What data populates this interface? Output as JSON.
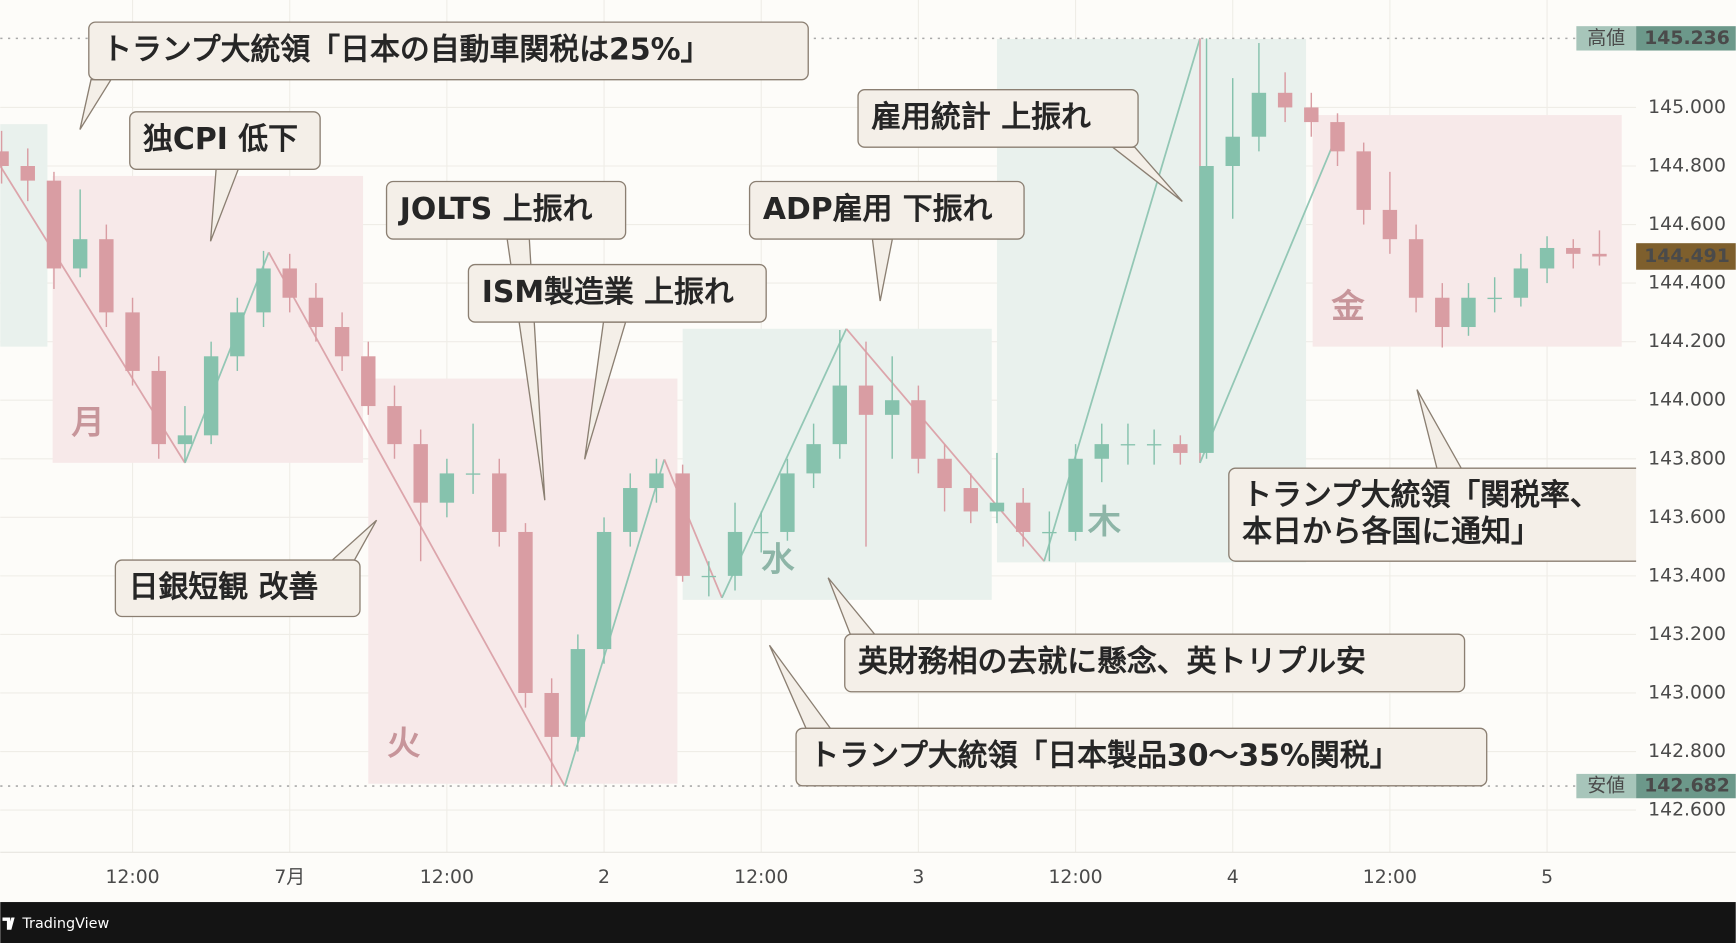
{
  "chart_data": {
    "type": "candlestick",
    "x": [
      -22,
      -20,
      -18,
      -16,
      -14,
      -12,
      -10,
      -8,
      -6,
      -4,
      -2,
      0,
      2,
      4,
      6,
      8,
      10,
      12,
      14,
      16,
      18,
      20,
      22,
      24,
      26,
      28,
      30,
      32,
      34,
      36,
      38,
      40,
      42,
      44,
      46,
      48,
      50,
      52,
      54,
      56,
      58,
      60,
      62,
      64,
      66,
      68,
      70,
      72,
      74,
      76,
      78,
      80,
      82,
      84,
      86,
      88,
      90,
      92,
      94,
      96,
      98,
      100
    ],
    "open": [
      144.85,
      144.8,
      144.75,
      144.45,
      144.55,
      144.3,
      144.1,
      143.85,
      143.88,
      144.15,
      144.3,
      144.45,
      144.35,
      144.25,
      144.15,
      143.98,
      143.85,
      143.65,
      143.75,
      143.75,
      143.55,
      143.0,
      142.85,
      143.15,
      143.55,
      143.7,
      143.75,
      143.4,
      143.4,
      143.55,
      143.55,
      143.75,
      143.85,
      144.05,
      143.95,
      144.0,
      143.8,
      143.7,
      143.62,
      143.65,
      143.55,
      143.55,
      143.8,
      143.85,
      143.85,
      143.85,
      143.82,
      144.8,
      144.9,
      145.05,
      145.0,
      144.95,
      144.85,
      144.65,
      144.55,
      144.35,
      144.25,
      144.35,
      144.35,
      144.45,
      144.52,
      144.5
    ],
    "high": [
      144.92,
      144.86,
      144.78,
      144.72,
      144.6,
      144.35,
      144.15,
      143.98,
      144.2,
      144.35,
      144.51,
      144.5,
      144.4,
      144.3,
      144.2,
      144.05,
      143.9,
      143.8,
      143.92,
      143.8,
      143.58,
      143.05,
      143.2,
      143.6,
      143.75,
      143.8,
      143.78,
      143.45,
      143.65,
      143.62,
      143.8,
      143.92,
      144.24,
      144.2,
      144.15,
      144.05,
      143.85,
      143.75,
      143.82,
      143.7,
      143.62,
      143.85,
      143.92,
      143.92,
      143.9,
      143.88,
      145.236,
      145.1,
      145.22,
      145.12,
      145.05,
      144.98,
      144.88,
      144.78,
      144.6,
      144.4,
      144.4,
      144.42,
      144.5,
      144.56,
      144.55,
      144.58
    ],
    "low": [
      144.74,
      144.68,
      144.38,
      144.42,
      144.25,
      144.05,
      143.8,
      143.79,
      143.85,
      144.1,
      144.25,
      144.3,
      144.2,
      144.1,
      143.95,
      143.8,
      143.45,
      143.6,
      143.68,
      143.5,
      142.95,
      142.682,
      142.8,
      143.1,
      143.5,
      143.65,
      143.38,
      143.33,
      143.35,
      143.48,
      143.52,
      143.7,
      143.8,
      143.5,
      143.8,
      143.75,
      143.62,
      143.58,
      143.58,
      143.5,
      143.45,
      143.52,
      143.72,
      143.78,
      143.78,
      143.78,
      143.8,
      144.62,
      144.85,
      144.95,
      144.9,
      144.8,
      144.6,
      144.5,
      144.3,
      144.18,
      144.22,
      144.3,
      144.32,
      144.4,
      144.45,
      144.46
    ],
    "close": [
      144.8,
      144.75,
      144.45,
      144.55,
      144.3,
      144.1,
      143.85,
      143.88,
      144.15,
      144.3,
      144.45,
      144.35,
      144.25,
      144.15,
      143.98,
      143.85,
      143.65,
      143.75,
      143.75,
      143.55,
      143.0,
      142.85,
      143.15,
      143.55,
      143.7,
      143.75,
      143.4,
      143.4,
      143.55,
      143.55,
      143.75,
      143.85,
      144.05,
      143.95,
      144.0,
      143.8,
      143.7,
      143.62,
      143.65,
      143.55,
      143.55,
      143.8,
      143.85,
      143.85,
      143.85,
      143.82,
      144.8,
      144.9,
      145.05,
      145.0,
      144.95,
      144.85,
      144.65,
      144.55,
      144.35,
      144.25,
      144.35,
      144.35,
      144.45,
      144.52,
      144.5,
      144.491
    ],
    "up_color": "#86c2ad",
    "down_color": "#d99da3",
    "xlim": [
      -22.1,
      102.8
    ],
    "xticks": [
      {
        "value": -12,
        "label": "12:00"
      },
      {
        "value": 0,
        "label": "7月"
      },
      {
        "value": 12,
        "label": "12:00"
      },
      {
        "value": 24,
        "label": "2"
      },
      {
        "value": 36,
        "label": "12:00"
      },
      {
        "value": 48,
        "label": "3"
      },
      {
        "value": 60,
        "label": "12:00"
      },
      {
        "value": 72,
        "label": "4"
      },
      {
        "value": 84,
        "label": "12:00"
      },
      {
        "value": 96,
        "label": "5"
      }
    ],
    "ylim": [
      142.456,
      145.367
    ],
    "yticks": [
      {
        "value": 142.6,
        "label": "142.600"
      },
      {
        "value": 142.8,
        "label": "142.800"
      },
      {
        "value": 143,
        "label": "143.000"
      },
      {
        "value": 143.2,
        "label": "143.200"
      },
      {
        "value": 143.4,
        "label": "143.400"
      },
      {
        "value": 143.6,
        "label": "143.600"
      },
      {
        "value": 143.8,
        "label": "143.800"
      },
      {
        "value": 144,
        "label": "144.000"
      },
      {
        "value": 144.2,
        "label": "144.200"
      },
      {
        "value": 144.4,
        "label": "144.400"
      },
      {
        "value": 144.6,
        "label": "144.600"
      },
      {
        "value": 144.8,
        "label": "144.800"
      },
      {
        "value": 145,
        "label": "145.000"
      }
    ],
    "grid": true,
    "sessions": [
      {
        "start": -22.1,
        "end": -18.5,
        "high": 144.943,
        "low": 144.183,
        "color": "#e9f1ed"
      },
      {
        "label": "月",
        "start": -18.1,
        "end": 5.6,
        "high": 144.766,
        "low": 143.786,
        "color": "#f7e9e9",
        "label_color": "#c7959a"
      },
      {
        "label": "火",
        "start": 6.0,
        "end": 29.6,
        "high": 144.074,
        "low": 142.69,
        "color": "#f7e9e9",
        "label_color": "#c7959a"
      },
      {
        "label": "水",
        "start": 30.0,
        "end": 53.6,
        "high": 144.244,
        "low": 143.318,
        "color": "#e9f1ed",
        "label_color": "#8db5a7"
      },
      {
        "label": "木",
        "start": 54.0,
        "end": 77.6,
        "high": 145.234,
        "low": 143.446,
        "color": "#e9f1ed",
        "label_color": "#8db5a7"
      },
      {
        "label": "金",
        "start": 78.1,
        "end": 101.7,
        "high": 144.974,
        "low": 144.183,
        "color": "#f7e9e9",
        "label_color": "#c7959a"
      }
    ],
    "zigzag": {
      "x": [
        -22.1,
        -8.0,
        -1.6,
        21.0,
        28.6,
        33.0,
        42.5,
        57.6,
        69.5,
        69.5,
        80.1
      ],
      "y": [
        144.8,
        143.786,
        144.505,
        142.682,
        143.798,
        143.325,
        144.244,
        143.45,
        145.236,
        143.786,
        144.921
      ],
      "up_color": "#93c7b5",
      "down_color": "#dca5ab"
    },
    "high_marker": {
      "label": "高値",
      "value": 145.236
    },
    "low_marker": {
      "label": "安値",
      "value": 142.682
    },
    "annotations": [
      {
        "lines": [
          "トランプ大統領「日本の自動車関税は25%」"
        ]
      },
      {
        "lines": [
          "独CPI 低下"
        ]
      },
      {
        "lines": [
          "JOLTS 上振れ"
        ]
      },
      {
        "lines": [
          "ISM製造業 上振れ"
        ]
      },
      {
        "lines": [
          "ADP雇用 下振れ"
        ]
      },
      {
        "lines": [
          "雇用統計 上振れ"
        ]
      },
      {
        "lines": [
          "日銀短観 改善"
        ]
      },
      {
        "lines": [
          "英財務相の去就に懸念、英トリプル安"
        ]
      },
      {
        "lines": [
          "トランプ大統領「日本製品30～35%関税」"
        ]
      },
      {
        "lines": [
          "トランプ大統領「関税率、",
          "本日から各国に通知」"
        ]
      }
    ]
  },
  "footer": {
    "brand": "TradingView"
  }
}
